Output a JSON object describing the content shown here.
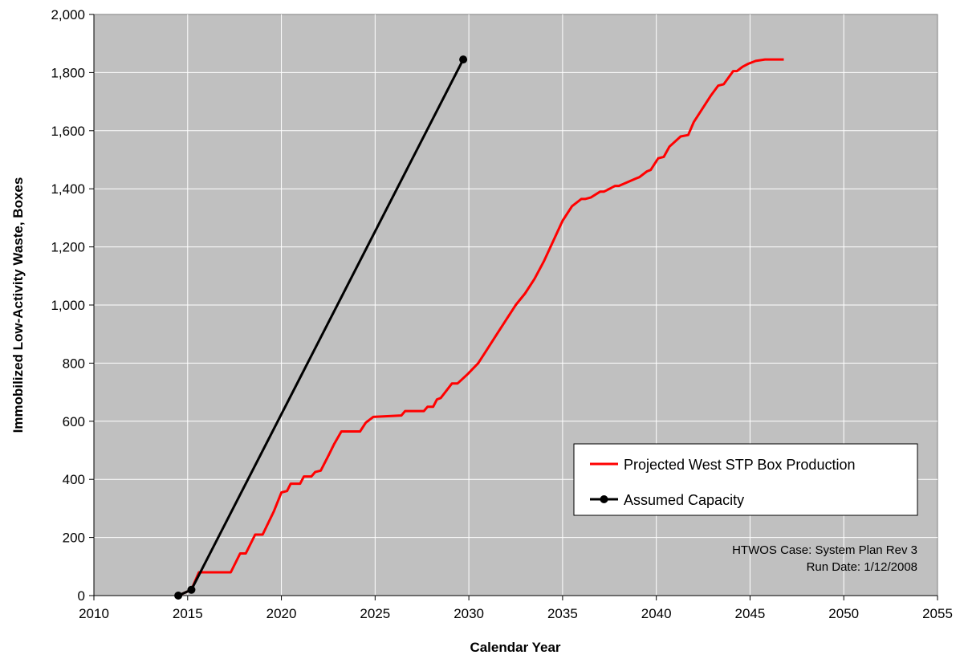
{
  "chart_data": {
    "type": "line",
    "title": "",
    "xlabel": "Calendar Year",
    "ylabel": "Immobilized Low-Activity Waste, Boxes",
    "xlim": [
      2010,
      2055
    ],
    "ylim": [
      0,
      2000
    ],
    "x_ticks": [
      "2010",
      "2015",
      "2020",
      "2025",
      "2030",
      "2035",
      "2040",
      "2045",
      "2050",
      "2055"
    ],
    "y_ticks": [
      "0",
      "200",
      "400",
      "600",
      "800",
      "1,000",
      "1,200",
      "1,400",
      "1,600",
      "1,800",
      "2,000"
    ],
    "grid": true,
    "plot_background": "#c0c0c0",
    "legend_position": "bottom-right",
    "series": [
      {
        "name": "Projected West STP Box Production",
        "color": "#ff0000",
        "markers": false,
        "x": [
          2014.5,
          2015.2,
          2015.6,
          2017.3,
          2017.8,
          2018.1,
          2018.6,
          2019.0,
          2019.6,
          2020.0,
          2020.3,
          2020.5,
          2021.0,
          2021.2,
          2021.6,
          2021.8,
          2022.1,
          2022.5,
          2022.8,
          2023.2,
          2024.2,
          2024.5,
          2024.9,
          2026.4,
          2026.6,
          2027.6,
          2027.8,
          2028.1,
          2028.3,
          2028.5,
          2028.8,
          2029.1,
          2029.4,
          2029.9,
          2030.5,
          2031.0,
          2031.5,
          2032.0,
          2032.5,
          2033.0,
          2033.5,
          2034.0,
          2034.5,
          2035.0,
          2035.5,
          2036.0,
          2036.2,
          2036.5,
          2037.0,
          2037.2,
          2037.8,
          2038.0,
          2038.9,
          2039.1,
          2039.5,
          2039.7,
          2040.1,
          2040.4,
          2040.7,
          2041.3,
          2041.7,
          2042.0,
          2042.5,
          2042.9,
          2043.3,
          2043.6,
          2044.1,
          2044.3,
          2044.6,
          2044.9,
          2045.3,
          2045.8,
          2046.8
        ],
        "y": [
          0,
          20,
          80,
          80,
          145,
          145,
          210,
          210,
          290,
          355,
          360,
          385,
          385,
          410,
          410,
          425,
          430,
          480,
          520,
          565,
          565,
          595,
          615,
          620,
          635,
          635,
          650,
          650,
          675,
          680,
          705,
          730,
          730,
          760,
          800,
          850,
          900,
          950,
          1000,
          1040,
          1090,
          1150,
          1220,
          1290,
          1340,
          1365,
          1365,
          1370,
          1390,
          1390,
          1410,
          1410,
          1435,
          1440,
          1460,
          1465,
          1505,
          1510,
          1545,
          1580,
          1585,
          1630,
          1680,
          1720,
          1755,
          1760,
          1805,
          1805,
          1820,
          1830,
          1840,
          1845,
          1845
        ]
      },
      {
        "name": "Assumed Capacity",
        "color": "#000000",
        "markers": true,
        "x": [
          2014.5,
          2015.2,
          2029.7
        ],
        "y": [
          0,
          20,
          1845
        ]
      }
    ],
    "annotations": [
      "HTWOS Case: System Plan Rev 3",
      "Run Date: 1/12/2008"
    ]
  }
}
